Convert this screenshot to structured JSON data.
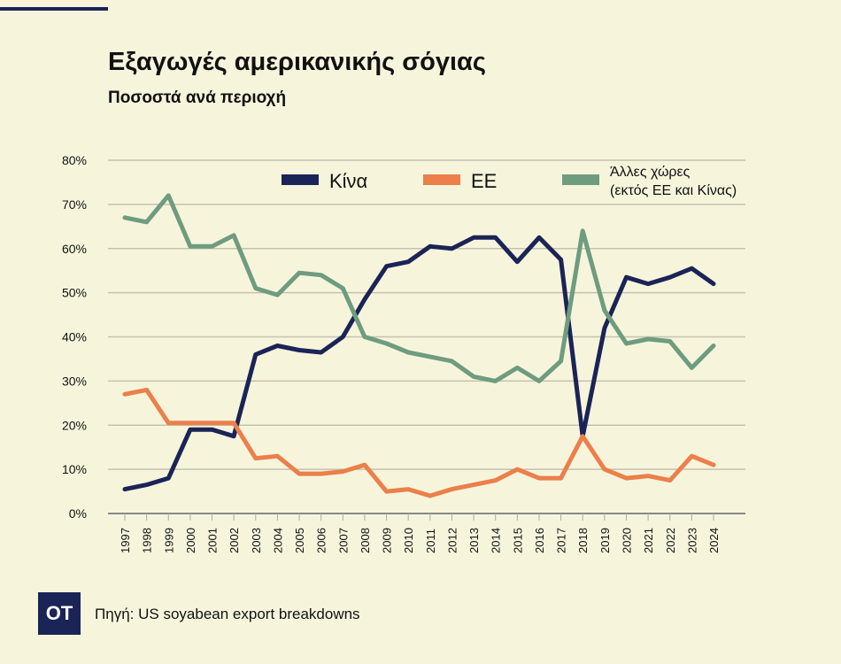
{
  "header": {
    "title": "Εξαγωγές αμερικανικής σόγιας",
    "subtitle": "Ποσοστά ανά περιοχή"
  },
  "footer": {
    "logo": "OT",
    "source": "Πηγή: US soyabean export breakdowns"
  },
  "chart_data": {
    "type": "line",
    "title": "Εξαγωγές αμερικανικής σόγιας",
    "subtitle": "Ποσοστά ανά περιοχή",
    "xlabel": "",
    "ylabel": "",
    "ylim": [
      0,
      80
    ],
    "yticks": [
      "0%",
      "10%",
      "20%",
      "30%",
      "40%",
      "50%",
      "60%",
      "70%",
      "80%"
    ],
    "grid": true,
    "legend_position": "top",
    "x": [
      "1997",
      "1998",
      "1999",
      "2000",
      "2001",
      "2002",
      "2003",
      "2004",
      "2005",
      "2006",
      "2007",
      "2008",
      "2009",
      "2010",
      "2011",
      "2012",
      "2013",
      "2014",
      "2015",
      "2016",
      "2017",
      "2018",
      "2019",
      "2020",
      "2021",
      "2022",
      "2023",
      "2024"
    ],
    "series": [
      {
        "name": "Κίνα",
        "color": "#1b2456",
        "values": [
          5.5,
          6.5,
          8,
          19,
          19,
          17.5,
          36,
          38,
          37,
          36.5,
          40,
          48.5,
          56,
          57,
          60.5,
          60,
          62.5,
          62.5,
          57,
          62.5,
          57.5,
          17.5,
          42,
          53.5,
          52,
          53.5,
          55.5,
          52
        ]
      },
      {
        "name": "ΕΕ",
        "color": "#ec7f4a",
        "values": [
          27,
          28,
          20.5,
          20.5,
          20.5,
          20.5,
          12.5,
          13,
          9,
          9,
          9.5,
          11,
          5,
          5.5,
          4,
          5.5,
          6.5,
          7.5,
          10,
          8,
          8,
          17.5,
          10,
          8,
          8.5,
          7.5,
          13,
          11
        ]
      },
      {
        "name": "Άλλες χώρες (εκτός ΕΕ και Κίνας)",
        "label_lines": [
          "Άλλες χώρες",
          "(εκτός ΕΕ και Κίνας)"
        ],
        "color": "#6f9c7f",
        "values": [
          67,
          66,
          72,
          60.5,
          60.5,
          63,
          51,
          49.5,
          54.5,
          54,
          51,
          40,
          38.5,
          36.5,
          35.5,
          34.5,
          31,
          30,
          33,
          30,
          34.5,
          64,
          46,
          38.5,
          39.5,
          39,
          33,
          38
        ]
      }
    ]
  }
}
